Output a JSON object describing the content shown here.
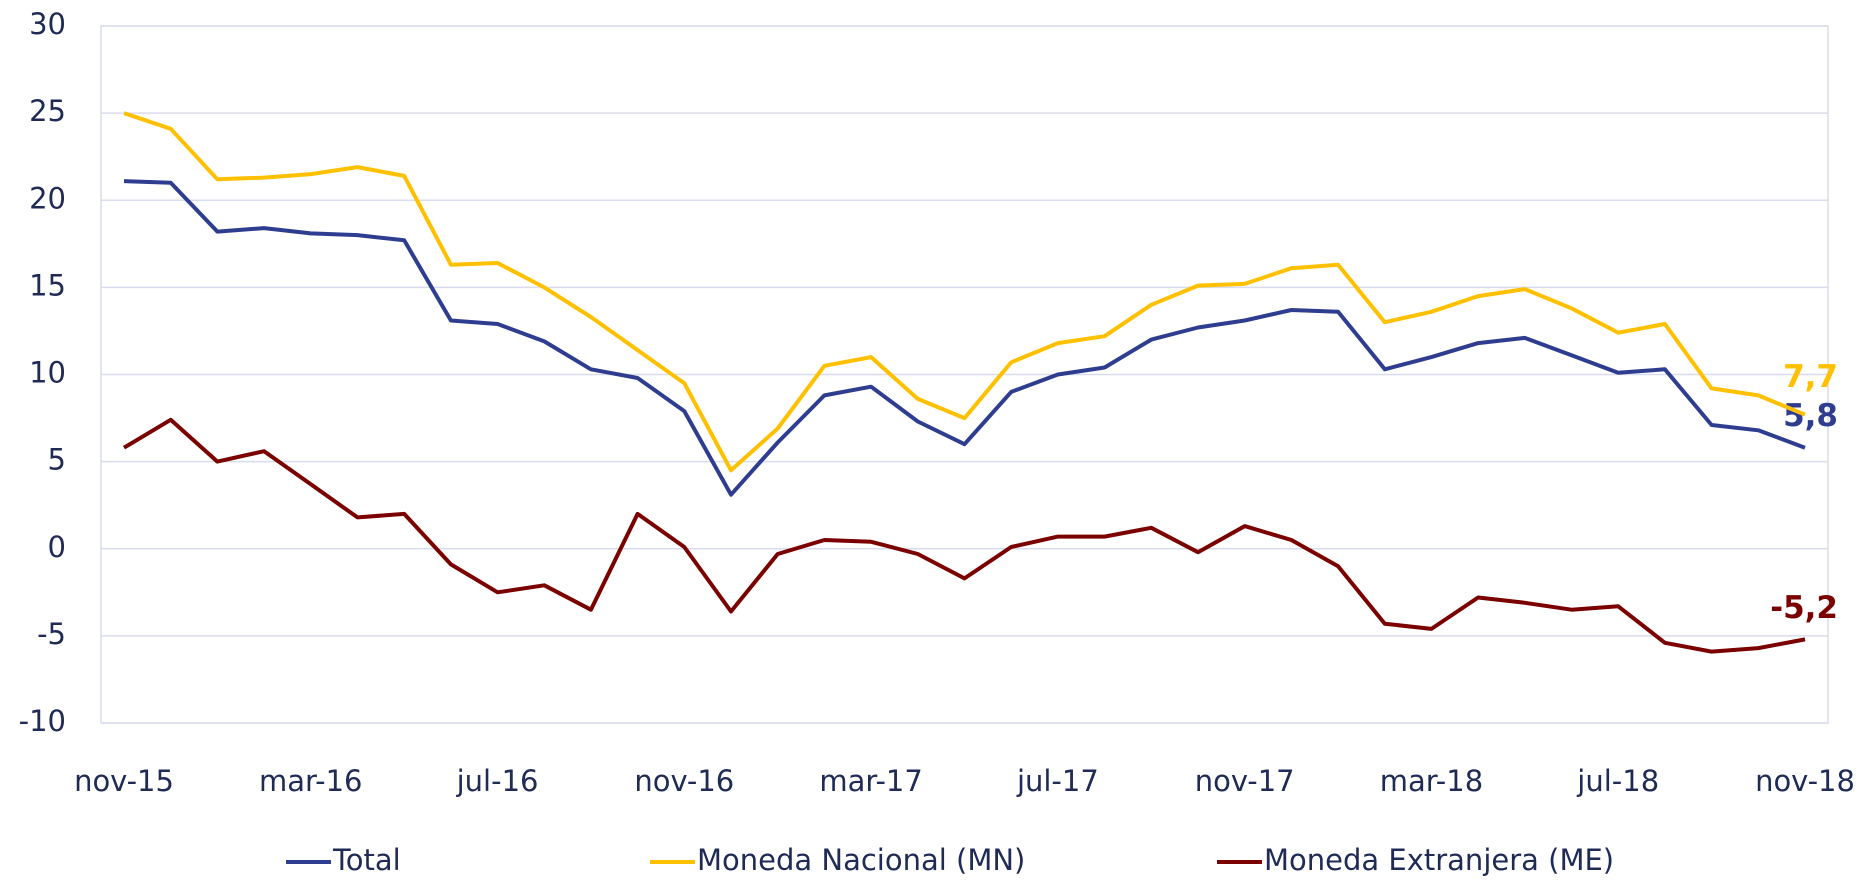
{
  "chart_data": {
    "type": "line",
    "categories": [
      "nov-15",
      null,
      null,
      null,
      "mar-16",
      null,
      null,
      null,
      "jul-16",
      null,
      null,
      null,
      "nov-16",
      null,
      null,
      null,
      "mar-17",
      null,
      null,
      null,
      "jul-17",
      null,
      null,
      null,
      "nov-17",
      null,
      null,
      null,
      "mar-18",
      null,
      null,
      null,
      "jul-18",
      null,
      null,
      null,
      "nov-18"
    ],
    "series": [
      {
        "name": "Total",
        "color": "#2e3d8f",
        "values": [
          21.1,
          21.0,
          18.2,
          18.4,
          18.1,
          18.0,
          17.7,
          13.1,
          12.9,
          11.9,
          10.3,
          9.8,
          7.9,
          3.1,
          6.1,
          8.8,
          9.3,
          7.3,
          6.0,
          9.0,
          10.0,
          10.4,
          12.0,
          12.7,
          13.1,
          13.7,
          13.6,
          10.3,
          11.0,
          11.8,
          12.1,
          11.1,
          10.1,
          10.3,
          7.1,
          6.8,
          5.8
        ],
        "value_labels": [
          null,
          null,
          null,
          null,
          null,
          null,
          null,
          null,
          null,
          null,
          null,
          null,
          null,
          null,
          null,
          null,
          null,
          null,
          null,
          null,
          null,
          null,
          null,
          null,
          null,
          null,
          null,
          null,
          null,
          null,
          null,
          null,
          null,
          null,
          null,
          null,
          "5,8"
        ]
      },
      {
        "name": "Moneda Nacional (MN)",
        "color": "#ffc000",
        "values": [
          25.0,
          24.1,
          21.2,
          21.3,
          21.5,
          21.9,
          21.4,
          16.3,
          16.4,
          15.0,
          13.3,
          11.4,
          9.5,
          4.5,
          6.9,
          10.5,
          11.0,
          8.6,
          7.5,
          10.7,
          11.8,
          12.2,
          14.0,
          15.1,
          15.2,
          16.1,
          16.3,
          13.0,
          13.6,
          14.5,
          14.9,
          13.8,
          12.4,
          12.9,
          9.2,
          8.8,
          7.7
        ],
        "value_labels": [
          null,
          null,
          null,
          null,
          null,
          null,
          null,
          null,
          null,
          null,
          null,
          null,
          null,
          null,
          null,
          null,
          null,
          null,
          null,
          null,
          null,
          null,
          null,
          null,
          null,
          null,
          null,
          null,
          null,
          null,
          null,
          null,
          null,
          null,
          null,
          null,
          "7,7"
        ]
      },
      {
        "name": "Moneda Extranjera (ME)",
        "color": "#7b0000",
        "values": [
          5.8,
          7.4,
          5.0,
          5.6,
          3.7,
          1.8,
          2.0,
          -0.9,
          -2.5,
          -2.1,
          -3.5,
          2.0,
          0.1,
          -3.6,
          -0.3,
          0.5,
          0.4,
          -0.3,
          -1.7,
          0.1,
          0.7,
          0.7,
          1.2,
          -0.2,
          1.3,
          0.5,
          -1.0,
          -4.3,
          -4.6,
          -2.8,
          -3.1,
          -3.5,
          -3.3,
          -5.4,
          -5.9,
          -5.7,
          -5.2
        ],
        "value_labels": [
          null,
          null,
          null,
          null,
          null,
          null,
          null,
          null,
          null,
          null,
          null,
          null,
          null,
          null,
          null,
          null,
          null,
          null,
          null,
          null,
          null,
          null,
          null,
          null,
          null,
          null,
          null,
          null,
          null,
          null,
          null,
          null,
          null,
          null,
          null,
          null,
          "-5,2"
        ]
      }
    ],
    "ylim": [
      -10,
      30
    ],
    "yticks": [
      -10,
      -5,
      0,
      5,
      10,
      15,
      20,
      25,
      30
    ],
    "grid": true,
    "legend": "bottom"
  }
}
